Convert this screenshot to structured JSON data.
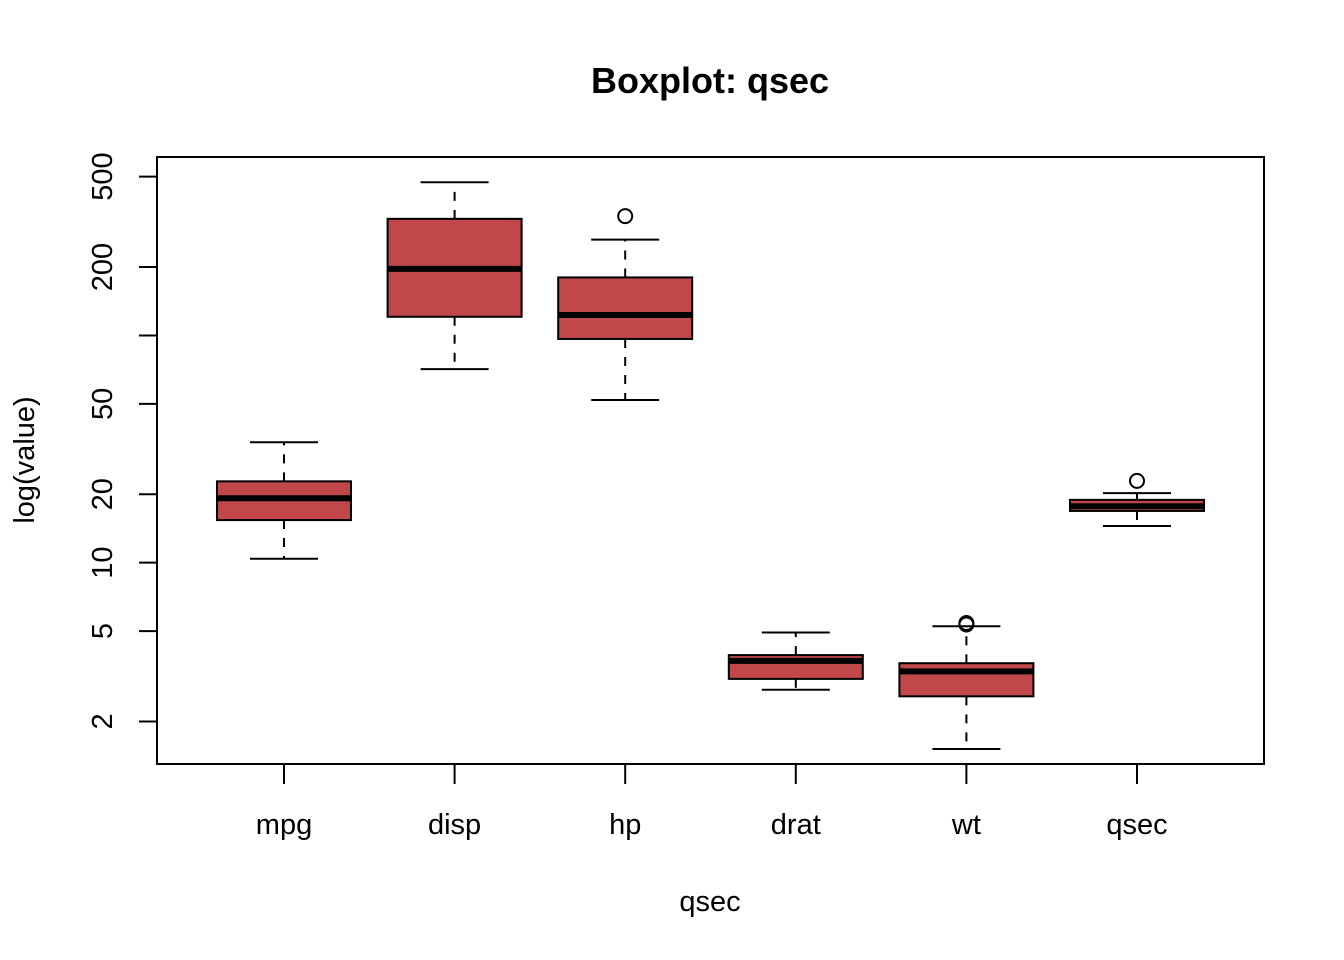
{
  "chart_data": {
    "type": "boxplot",
    "title": "Boxplot: qsec",
    "xlabel": "qsec",
    "ylabel": "log(value)",
    "yscale": "log",
    "ylim": [
      1.3,
      610
    ],
    "yticks": [
      2,
      5,
      10,
      20,
      50,
      100,
      200,
      500
    ],
    "ytick_labels": [
      "2",
      "5",
      "10",
      "20",
      "50",
      "",
      "200",
      "500"
    ],
    "box_color": "#C1474A",
    "categories": [
      "mpg",
      "disp",
      "hp",
      "drat",
      "wt",
      "qsec"
    ],
    "boxes": [
      {
        "name": "mpg",
        "whisker_low": 10.4,
        "q1": 15.4,
        "median": 19.2,
        "q3": 22.8,
        "whisker_high": 33.9,
        "outliers": []
      },
      {
        "name": "disp",
        "whisker_low": 71.1,
        "q1": 120.8,
        "median": 196.3,
        "q3": 326.0,
        "whisker_high": 472.0,
        "outliers": []
      },
      {
        "name": "hp",
        "whisker_low": 52,
        "q1": 96.5,
        "median": 123,
        "q3": 180,
        "whisker_high": 264,
        "outliers": [
          335
        ]
      },
      {
        "name": "drat",
        "whisker_low": 2.76,
        "q1": 3.08,
        "median": 3.695,
        "q3": 3.92,
        "whisker_high": 4.93,
        "outliers": []
      },
      {
        "name": "wt",
        "whisker_low": 1.513,
        "q1": 2.581,
        "median": 3.325,
        "q3": 3.61,
        "whisker_high": 5.25,
        "outliers": [
          5.345,
          5.424
        ]
      },
      {
        "name": "qsec",
        "whisker_low": 14.5,
        "q1": 16.89,
        "median": 17.71,
        "q3": 18.9,
        "whisker_high": 20.22,
        "outliers": [
          22.9
        ]
      }
    ]
  }
}
